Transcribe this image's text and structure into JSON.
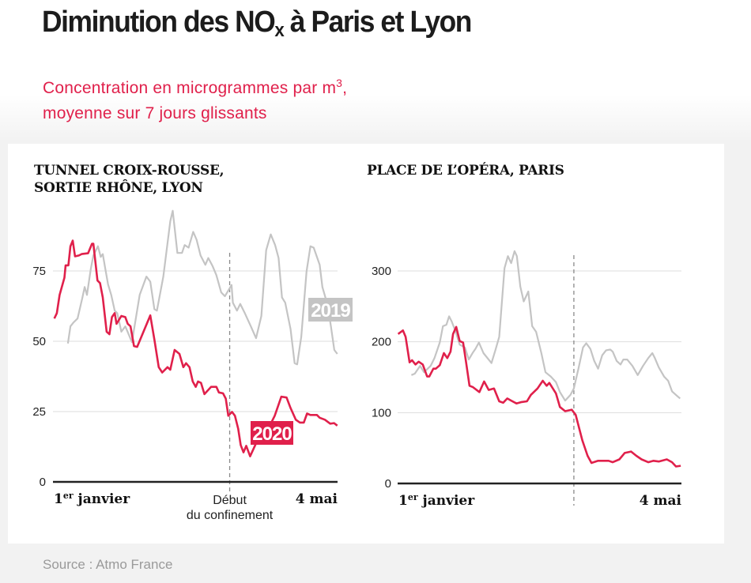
{
  "header": {
    "title_part1": "Diminution des NO",
    "title_sub": "x",
    "title_part2": " à Paris et Lyon",
    "subtitle_line1": "Concentration en microgrammes par m",
    "subtitle_sup": "3",
    "subtitle_line1_end": ",",
    "subtitle_line2": "moyenne sur 7 jours glissants"
  },
  "source": "Source : Atmo France",
  "colors": {
    "series_2020": "#e0204b",
    "series_2019": "#c4c4c4",
    "axis": "#222222",
    "grid": "#dddddd"
  },
  "chart_data": [
    {
      "type": "line",
      "title_line1": "TUNNEL CROIX-ROUSSE,",
      "title_line2": "SORTIE RHÔNE, LYON",
      "xlabel_start": "1",
      "xlabel_start_sup": "er",
      "xlabel_start_rest": " janvier",
      "xlabel_end": "4 mai",
      "annotation_line1": "Début",
      "annotation_line2": "du confinement",
      "annotation_x": 77,
      "xlim": [
        0,
        124
      ],
      "ylim": [
        0,
        75
      ],
      "yticks": [
        "0",
        "25",
        "50",
        "75"
      ],
      "grid": true,
      "series": [
        {
          "name": "2019",
          "label": "2019",
          "color": "#c4c4c4",
          "x": [
            6.5,
            7.6,
            9,
            10.7,
            12.7,
            13.8,
            14.8,
            16.5,
            17.6,
            19.6,
            20.8,
            21.7,
            22.8,
            24,
            25.4,
            26.9,
            28,
            29.8,
            31.5,
            34.4,
            36.1,
            37.8,
            40.7,
            42.4,
            44.2,
            45.3,
            48.1,
            51.1,
            52.2,
            54.2,
            56.2,
            57.4,
            59.1,
            61.1,
            62.6,
            64.3,
            66.4,
            67.7,
            69.5,
            71.2,
            73.3,
            74.9,
            77.8,
            78.4,
            80.2,
            81.6,
            83.6,
            86.2,
            88.5,
            90.8,
            92.9,
            94.9,
            96.8,
            98.3,
            99.8,
            101.2,
            103.5,
            105.3,
            106.4,
            108.2,
            110.5,
            112.2,
            113.6,
            116.2,
            117.4,
            119.7,
            121.1,
            122.6,
            123.9
          ],
          "y": [
            49.2,
            55.3,
            56.7,
            58.1,
            65.1,
            69.3,
            66.5,
            75.8,
            80.5,
            83.8,
            80,
            81,
            75.8,
            70.2,
            66.5,
            60.9,
            60,
            53.4,
            55.3,
            49.7,
            58.1,
            66.5,
            73,
            71.2,
            61.4,
            60.9,
            73,
            92.7,
            96.4,
            81.4,
            81.4,
            84.2,
            83.3,
            88.9,
            86.1,
            80.5,
            77.2,
            79.6,
            76.8,
            73.5,
            67.4,
            66,
            70,
            63.7,
            60.9,
            63.3,
            60,
            55.3,
            51.1,
            59,
            82.4,
            88,
            84.2,
            79.6,
            65.6,
            63.7,
            54.4,
            42.2,
            41.8,
            51.6,
            74.9,
            83.8,
            83.3,
            77.2,
            69.3,
            62.8,
            55.3,
            46.9,
            45.5
          ]
        },
        {
          "name": "2020",
          "label": "2020",
          "color": "#e0204b",
          "x": [
            0.6,
            1.7,
            2.9,
            5,
            5.5,
            6.7,
            7.6,
            8.6,
            9.6,
            11.3,
            12.5,
            15.3,
            17,
            17.6,
            19.4,
            20.5,
            21.7,
            23.4,
            24.6,
            25.7,
            26.9,
            27.7,
            29.8,
            31.5,
            32.6,
            33.8,
            35.3,
            36.7,
            42.4,
            44.2,
            46.1,
            47.6,
            49.9,
            51.1,
            53,
            55.1,
            56.8,
            58,
            59.5,
            60.9,
            62.2,
            63.2,
            64.5,
            66,
            68.9,
            71.2,
            72.3,
            74.1,
            75.3,
            76.4,
            78,
            79.3,
            80.7,
            81.8,
            83,
            84.2,
            85.9,
            88.5,
            93.2,
            96.6,
            99.5,
            101.8,
            103.5,
            105.8,
            107.6,
            109.3,
            110.7,
            112.2,
            115,
            116.2,
            118.5,
            120.8,
            122.5,
            123.9
          ],
          "y": [
            58.1,
            60,
            66.5,
            72.6,
            77,
            77,
            83.8,
            85.8,
            80.2,
            80.5,
            81,
            81.3,
            84.7,
            84.7,
            71.6,
            70.7,
            65.6,
            53.4,
            52.5,
            58.6,
            60,
            56.2,
            59,
            58.6,
            56.2,
            55.3,
            48.3,
            48,
            59.2,
            50.6,
            40.8,
            38.9,
            40.8,
            39.9,
            46.9,
            45.5,
            40.8,
            42.2,
            40.8,
            35.7,
            33.8,
            35.7,
            35.2,
            31.2,
            33.8,
            33.8,
            31.8,
            31.5,
            29.6,
            23.5,
            24.9,
            23.5,
            18.9,
            13.1,
            10.5,
            12.8,
            9.1,
            13.7,
            17.9,
            23.5,
            30.3,
            30,
            26.3,
            22.1,
            21.1,
            21.1,
            24.3,
            23.8,
            23.8,
            22.8,
            22.1,
            20.7,
            20.9,
            20
          ]
        }
      ]
    },
    {
      "type": "line",
      "title_line1": "PLACE DE L’OPÉRA, PARIS",
      "xlabel_start": "1",
      "xlabel_start_sup": "er",
      "xlabel_start_rest": " janvier",
      "xlabel_end": "4 mai",
      "annotation_x": 77,
      "xlim": [
        0,
        124
      ],
      "ylim": [
        0,
        300
      ],
      "yticks": [
        "0",
        "100",
        "200",
        "300"
      ],
      "grid": true,
      "series": [
        {
          "name": "2019",
          "color": "#c4c4c4",
          "x": [
            6,
            7.5,
            9.8,
            11.5,
            14.4,
            16.1,
            18.4,
            19.8,
            21.3,
            22.5,
            23.6,
            25.4,
            27.1,
            29.4,
            31.1,
            32.9,
            34,
            35.5,
            37.5,
            41,
            42.7,
            44.4,
            46.7,
            48.2,
            49.6,
            51.1,
            52.1,
            53.6,
            55.1,
            57.1,
            58.8,
            60.5,
            62.8,
            64.6,
            66.9,
            69.2,
            70.9,
            73.2,
            75.5,
            77,
            79,
            81,
            82.4,
            84.2,
            85.9,
            87.6,
            89.4,
            91.1,
            92.9,
            94,
            95.7,
            97.4,
            98.6,
            100.3,
            102.6,
            104.9,
            107.2,
            109.5,
            111.3,
            112.4,
            114.1,
            116.4,
            118.2,
            119.9,
            121.6,
            123.4
          ],
          "y": [
            153,
            155,
            166,
            157,
            166,
            177,
            199,
            222,
            224,
            236,
            229,
            214,
            196,
            192,
            175,
            185,
            190,
            199,
            184,
            170,
            188,
            207,
            304,
            321,
            311,
            328,
            321,
            278,
            257,
            271,
            222,
            214,
            184,
            157,
            151,
            143,
            129,
            117,
            125,
            134,
            162,
            192,
            198,
            190,
            173,
            162,
            181,
            188,
            189,
            186,
            173,
            168,
            175,
            175,
            166,
            153,
            166,
            177,
            184,
            177,
            164,
            151,
            145,
            130,
            125,
            120
          ]
        },
        {
          "name": "2020",
          "color": "#e0204b",
          "x": [
            0.2,
            2.3,
            3.5,
            5.2,
            6.3,
            7.8,
            9.2,
            11,
            12.1,
            12.9,
            13.8,
            15.6,
            16.7,
            18.4,
            20.2,
            21.7,
            23.1,
            24.2,
            25.6,
            27.1,
            28.6,
            29.9,
            31.4,
            32.9,
            35.7,
            37.8,
            39.8,
            42.1,
            44.4,
            46.1,
            47.9,
            49.6,
            51.9,
            54.2,
            56.5,
            58.2,
            61.1,
            63.4,
            65.1,
            66.3,
            69.2,
            70.9,
            73.2,
            76.1,
            77.8,
            80.7,
            83,
            84.7,
            87.6,
            92.2,
            94,
            96.9,
            99.2,
            102,
            104.3,
            106.6,
            109.5,
            111.8,
            114.1,
            117.6,
            119.9,
            121.6,
            123.7
          ],
          "y": [
            211,
            216,
            207,
            171,
            174,
            168,
            172,
            168,
            158,
            151,
            151,
            162,
            162,
            167,
            184,
            177,
            186,
            211,
            221,
            201,
            199,
            171,
            138,
            136,
            129,
            144,
            132,
            134,
            116,
            114,
            120,
            117,
            113,
            115,
            116,
            125,
            134,
            145,
            138,
            142,
            127,
            108,
            102,
            104,
            97,
            61,
            39,
            29,
            32,
            32,
            30,
            34,
            43,
            45,
            39,
            34,
            30,
            32,
            31,
            34,
            30,
            24,
            25
          ]
        }
      ]
    }
  ]
}
